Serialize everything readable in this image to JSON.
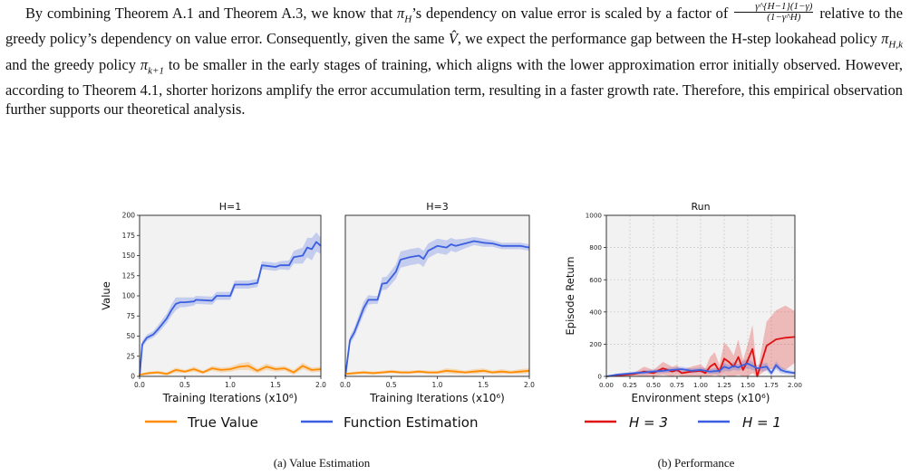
{
  "paragraph": {
    "p1": "By combining Theorem A.1 and Theorem A.3, we know that ",
    "pi_h": "π",
    "pi_h_sub": "H",
    "p2": "’s dependency on value error is scaled by a factor of ",
    "frac_num": "γ^{H−1}(1−γ)",
    "frac_den": "(1−γ^H)",
    "p3": " relative to the greedy policy’s dependency on value error. Consequently, given the same ",
    "vhat": "V̂",
    "p4": ", we expect the performance gap between the H-step lookahead policy ",
    "pi_hk_sub": "H,k",
    "p5": " and the greedy policy ",
    "pi_k1_sub": "k+1",
    "p6": " to be smaller in the early stages of training, which aligns with the lower approximation error initially observed. However, according to Theorem 4.1, shorter horizons amplify the error accumulation term, resulting in a faster growth rate. Therefore, this empirical observation further supports our theoretical analysis."
  },
  "colors": {
    "true_value": "#ff8c00",
    "function_estimation": "#3b5fe0",
    "h3": "#e01010",
    "h1": "#3b5fe0",
    "plot_bg": "#f2f2f2"
  },
  "captions": {
    "a": "(a) Value Estimation",
    "b": "(b) Performance"
  },
  "legend_a": [
    "True Value",
    "Function Estimation"
  ],
  "legend_b": [
    "H = 3",
    "H = 1"
  ],
  "chart_data": [
    {
      "type": "line",
      "title": "H=1",
      "xlabel": "Training Iterations (x10⁶)",
      "ylabel": "Value",
      "xlim": [
        0,
        2.0
      ],
      "ylim": [
        0,
        200
      ],
      "xticks": [
        "0.0",
        "0.5",
        "1.0",
        "1.5",
        "2.0"
      ],
      "yticks": [
        "0",
        "25",
        "50",
        "75",
        "100",
        "125",
        "150",
        "175",
        "200"
      ],
      "grid": false,
      "series": [
        {
          "name": "Function Estimation",
          "color_key": "function_estimation",
          "x": [
            0,
            0.03,
            0.08,
            0.15,
            0.2,
            0.3,
            0.35,
            0.4,
            0.45,
            0.5,
            0.6,
            0.62,
            0.8,
            0.85,
            1.0,
            1.05,
            1.2,
            1.3,
            1.35,
            1.5,
            1.55,
            1.65,
            1.7,
            1.8,
            1.85,
            1.9,
            1.95,
            2.0
          ],
          "y": [
            0,
            40,
            48,
            52,
            58,
            72,
            82,
            90,
            92,
            92,
            93,
            95,
            94,
            100,
            100,
            114,
            114,
            116,
            138,
            136,
            138,
            138,
            148,
            150,
            160,
            158,
            167,
            162
          ],
          "band": [
            0,
            4,
            4,
            4,
            5,
            6,
            7,
            8,
            6,
            6,
            5,
            5,
            5,
            5,
            5,
            5,
            5,
            5,
            5,
            5,
            5,
            6,
            8,
            10,
            12,
            14,
            12,
            10
          ]
        },
        {
          "name": "True Value",
          "color_key": "true_value",
          "x": [
            0,
            0.1,
            0.2,
            0.3,
            0.4,
            0.5,
            0.6,
            0.7,
            0.8,
            0.9,
            1.0,
            1.1,
            1.2,
            1.3,
            1.4,
            1.5,
            1.6,
            1.7,
            1.8,
            1.9,
            2.0
          ],
          "y": [
            2,
            4,
            5,
            3,
            8,
            6,
            9,
            5,
            10,
            8,
            9,
            12,
            13,
            7,
            12,
            9,
            10,
            5,
            13,
            8,
            9
          ],
          "band": [
            1,
            2,
            2,
            2,
            3,
            2,
            3,
            2,
            3,
            3,
            3,
            4,
            5,
            3,
            4,
            3,
            3,
            3,
            4,
            3,
            3
          ]
        }
      ]
    },
    {
      "type": "line",
      "title": "H=3",
      "xlabel": "Training Iterations (x10⁶)",
      "ylabel": "",
      "xlim": [
        0,
        2.0
      ],
      "ylim": [
        0,
        200
      ],
      "xticks": [
        "0.0",
        "0.5",
        "1.0",
        "1.5",
        "2.0"
      ],
      "yticks": [],
      "grid": false,
      "series": [
        {
          "name": "Function Estimation",
          "color_key": "function_estimation",
          "x": [
            0,
            0.05,
            0.1,
            0.15,
            0.2,
            0.25,
            0.3,
            0.35,
            0.4,
            0.45,
            0.55,
            0.6,
            0.7,
            0.8,
            0.85,
            0.9,
            1.0,
            1.1,
            1.15,
            1.2,
            1.3,
            1.4,
            1.5,
            1.6,
            1.7,
            1.8,
            1.9,
            2.0
          ],
          "y": [
            0,
            45,
            55,
            70,
            85,
            95,
            95,
            95,
            115,
            116,
            130,
            145,
            148,
            150,
            146,
            156,
            162,
            160,
            164,
            162,
            165,
            168,
            166,
            165,
            162,
            162,
            162,
            160
          ],
          "band": [
            0,
            5,
            6,
            7,
            8,
            6,
            5,
            5,
            8,
            8,
            9,
            10,
            10,
            10,
            10,
            9,
            9,
            9,
            8,
            8,
            6,
            5,
            5,
            4,
            4,
            4,
            4,
            4
          ]
        },
        {
          "name": "True Value",
          "color_key": "true_value",
          "x": [
            0,
            0.1,
            0.2,
            0.3,
            0.4,
            0.5,
            0.6,
            0.7,
            0.8,
            0.9,
            1.0,
            1.1,
            1.2,
            1.3,
            1.4,
            1.5,
            1.6,
            1.7,
            1.8,
            1.9,
            2.0
          ],
          "y": [
            3,
            4,
            5,
            4,
            5,
            6,
            5,
            5,
            6,
            5,
            5,
            7,
            6,
            5,
            6,
            7,
            5,
            6,
            5,
            6,
            7
          ],
          "band": [
            1,
            2,
            2,
            2,
            2,
            2,
            2,
            2,
            2,
            2,
            2,
            3,
            3,
            2,
            3,
            3,
            2,
            3,
            2,
            3,
            3
          ]
        }
      ]
    },
    {
      "type": "line",
      "title": "Run",
      "xlabel": "Environment steps (x10⁶)",
      "ylabel": "Episode Return",
      "xlim": [
        0,
        2.0
      ],
      "ylim": [
        0,
        1000
      ],
      "xticks": [
        "0.00",
        "0.25",
        "0.50",
        "0.75",
        "1.00",
        "1.25",
        "1.50",
        "1.75",
        "2.00"
      ],
      "yticks": [
        "0",
        "200",
        "400",
        "600",
        "800",
        "1000"
      ],
      "grid": true,
      "series": [
        {
          "name": "H = 3",
          "color_key": "h3",
          "x": [
            0,
            0.1,
            0.2,
            0.3,
            0.4,
            0.5,
            0.6,
            0.7,
            0.75,
            0.8,
            0.9,
            1.0,
            1.05,
            1.1,
            1.15,
            1.2,
            1.25,
            1.3,
            1.35,
            1.4,
            1.45,
            1.5,
            1.55,
            1.6,
            1.7,
            1.8,
            1.9,
            2.0
          ],
          "y": [
            0,
            5,
            10,
            15,
            30,
            20,
            50,
            30,
            40,
            20,
            30,
            35,
            20,
            60,
            80,
            30,
            110,
            90,
            60,
            120,
            40,
            100,
            170,
            0,
            190,
            230,
            240,
            245
          ],
          "band": [
            0,
            5,
            8,
            10,
            30,
            20,
            40,
            30,
            30,
            20,
            30,
            40,
            30,
            60,
            70,
            40,
            100,
            90,
            70,
            110,
            60,
            100,
            150,
            20,
            150,
            180,
            200,
            160
          ]
        },
        {
          "name": "H = 1",
          "color_key": "h1",
          "x": [
            0,
            0.1,
            0.2,
            0.3,
            0.4,
            0.5,
            0.6,
            0.7,
            0.8,
            0.9,
            1.0,
            1.1,
            1.2,
            1.25,
            1.3,
            1.35,
            1.4,
            1.45,
            1.5,
            1.6,
            1.7,
            1.75,
            1.8,
            1.85,
            1.9,
            2.0
          ],
          "y": [
            0,
            10,
            15,
            20,
            25,
            30,
            35,
            40,
            45,
            35,
            40,
            30,
            35,
            60,
            50,
            65,
            55,
            70,
            80,
            50,
            60,
            20,
            70,
            40,
            30,
            20
          ],
          "band": [
            0,
            5,
            8,
            10,
            12,
            12,
            15,
            15,
            15,
            15,
            15,
            15,
            20,
            25,
            20,
            25,
            20,
            25,
            30,
            20,
            25,
            15,
            25,
            20,
            15,
            10
          ]
        }
      ]
    }
  ]
}
